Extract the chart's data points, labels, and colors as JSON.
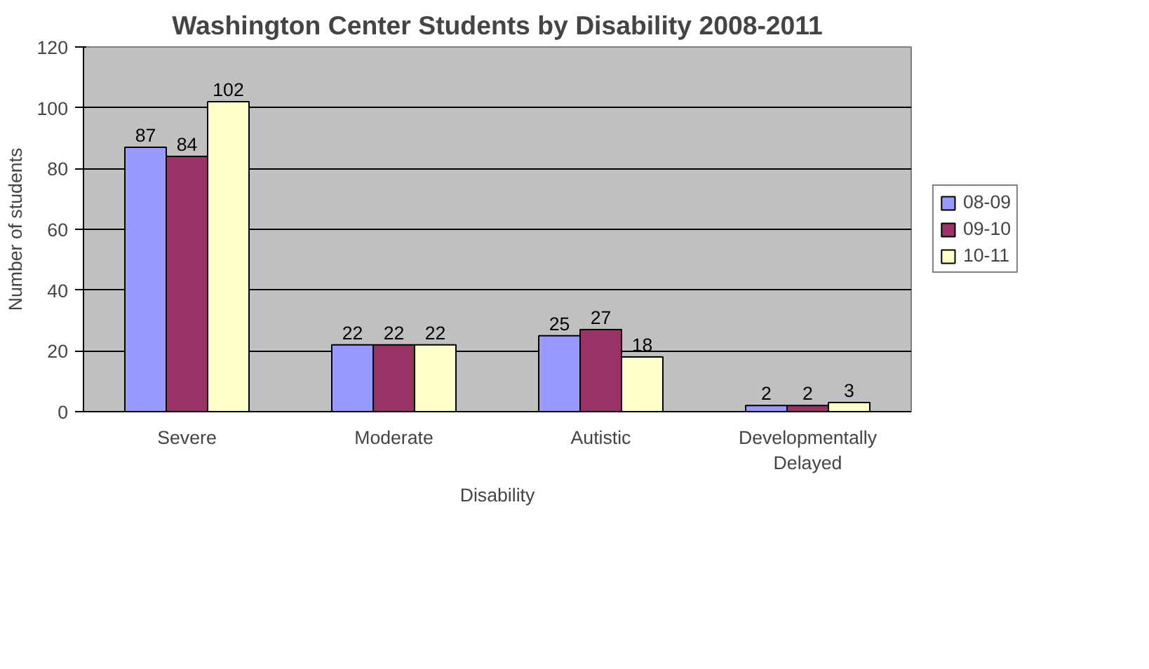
{
  "chart_data": {
    "type": "bar",
    "title": "Washington Center Students by Disability 2008-2011",
    "xlabel": "Disability",
    "ylabel": "Number of students",
    "categories": [
      "Severe",
      "Moderate",
      "Autistic",
      "Developmentally Delayed"
    ],
    "series": [
      {
        "name": "08-09",
        "color": "#9999ff",
        "values": [
          87,
          22,
          25,
          2
        ]
      },
      {
        "name": "09-10",
        "color": "#993366",
        "values": [
          84,
          22,
          27,
          2
        ]
      },
      {
        "name": "10-11",
        "color": "#ffffcc",
        "values": [
          102,
          22,
          18,
          3
        ]
      }
    ],
    "ylim": [
      0,
      120
    ],
    "yticks": [
      0,
      20,
      40,
      60,
      80,
      100,
      120
    ],
    "grid": "y",
    "legend": "right",
    "data_labels": true
  }
}
